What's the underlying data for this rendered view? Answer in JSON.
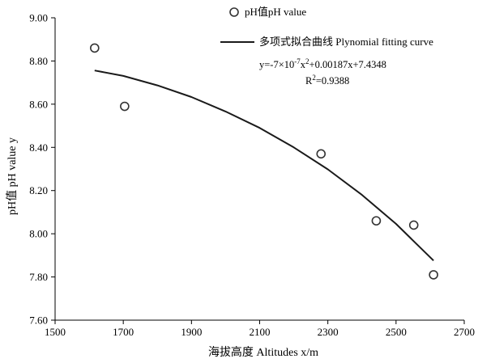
{
  "chart_data": {
    "type": "scatter",
    "xlabel": "海拔高度 Altitudes  x/m",
    "ylabel": "pH值 pH value y",
    "xlim": [
      1500,
      2700
    ],
    "ylim": [
      7.6,
      9.0
    ],
    "xticks": [
      "1500",
      "1700",
      "1900",
      "2100",
      "2300",
      "2500",
      "2700"
    ],
    "yticks": [
      "7.60",
      "7.80",
      "8.00",
      "8.20",
      "8.40",
      "8.60",
      "8.80",
      "9.00"
    ],
    "grid": false,
    "legend_position": "top-right",
    "series": [
      {
        "name": "pH值pH value",
        "kind": "points",
        "marker": "open-circle",
        "color": "#333333",
        "x": [
          1616,
          1704,
          2280,
          2442,
          2552,
          2610
        ],
        "y": [
          8.86,
          8.59,
          8.37,
          8.06,
          8.04,
          7.81
        ]
      },
      {
        "name": "多项式拟合曲线  Plynomial fitting curve",
        "kind": "fit-curve",
        "color": "#1a1a1a",
        "x": [
          1616,
          1700,
          1800,
          1900,
          2000,
          2100,
          2200,
          2300,
          2400,
          2500,
          2610
        ],
        "y": [
          8.756,
          8.731,
          8.687,
          8.633,
          8.566,
          8.49,
          8.4,
          8.298,
          8.18,
          8.046,
          7.876
        ]
      }
    ],
    "annotations": {
      "equation": "y=-7×10",
      "equation_exp": "-7",
      "equation_mid": "x",
      "equation_exp2": "2",
      "equation_tail": "+0.00187x+7.4348",
      "r2_prefix": "R",
      "r2_exp": "2",
      "r2_tail": "=0.9388"
    }
  }
}
